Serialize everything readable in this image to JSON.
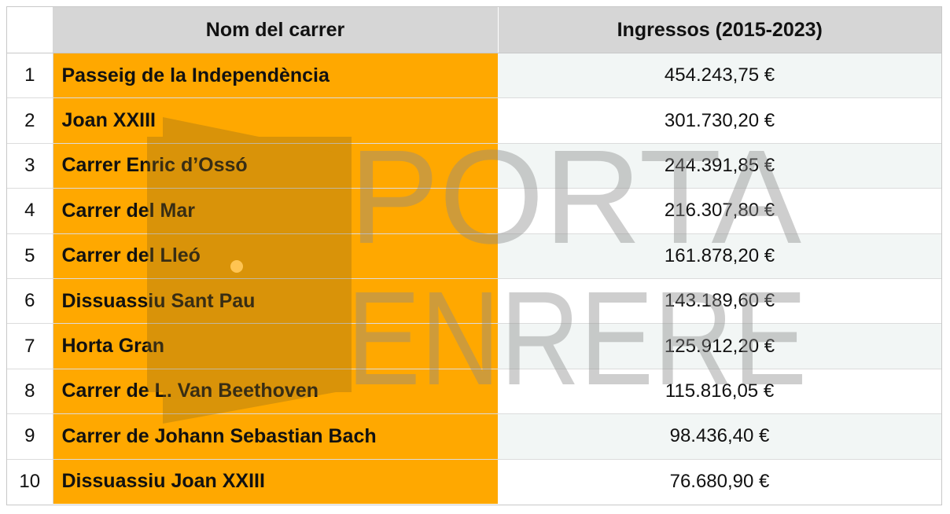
{
  "table": {
    "headers": {
      "index": "",
      "name": "Nom del carrer",
      "value": "Ingressos (2015-2023)"
    },
    "rows": [
      {
        "rank": "1",
        "name": "Passeig de la Independència",
        "value": "454.243,75 €"
      },
      {
        "rank": "2",
        "name": "Joan XXIII",
        "value": "301.730,20 €"
      },
      {
        "rank": "3",
        "name": "Carrer Enric d’Ossó",
        "value": "244.391,85 €"
      },
      {
        "rank": "4",
        "name": "Carrer del Mar",
        "value": "216.307,80 €"
      },
      {
        "rank": "5",
        "name": "Carrer del Lleó",
        "value": "161.878,20 €"
      },
      {
        "rank": "6",
        "name": "Dissuassiu Sant Pau",
        "value": "143.189,60 €"
      },
      {
        "rank": "7",
        "name": "Horta Gran",
        "value": "125.912,20 €"
      },
      {
        "rank": "8",
        "name": "Carrer de L. Van Beethoven",
        "value": "115.816,05 €"
      },
      {
        "rank": "9",
        "name": "Carrer de Johann Sebastian Bach",
        "value": "98.436,40 €"
      },
      {
        "rank": "10",
        "name": "Dissuassiu Joan XXIII",
        "value": "76.680,90 €"
      }
    ]
  },
  "watermark": {
    "line1": "PORTA",
    "line2": "ENRERE",
    "icon": "door-icon",
    "door_color": "#8a6a1c",
    "text_color": "#8a8a8a"
  },
  "colors": {
    "name_column": "#ffa800",
    "header_bg": "#d6d6d6",
    "stripe": "#f2f6f5"
  }
}
